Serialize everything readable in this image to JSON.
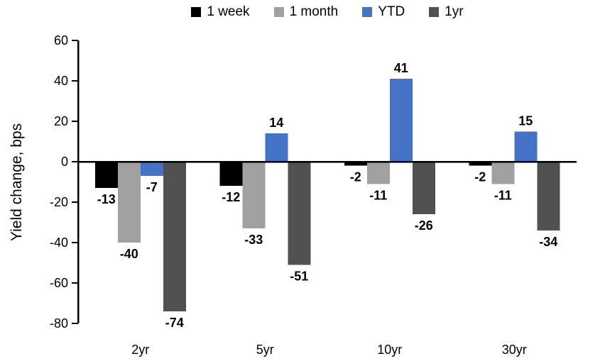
{
  "chart_data": {
    "type": "bar",
    "title": "",
    "ylabel": "Yield change, bps",
    "xlabel": "",
    "ylim": [
      -80,
      60
    ],
    "ytick_step": 20,
    "yticks": [
      60,
      40,
      20,
      0,
      -20,
      -40,
      -60,
      -80
    ],
    "grid": false,
    "legend_position": "top",
    "categories": [
      "2yr",
      "5yr",
      "10yr",
      "30yr"
    ],
    "series": [
      {
        "name": "1 week",
        "color": "#000000",
        "values": [
          -13,
          -12,
          -2,
          -2
        ]
      },
      {
        "name": "1 month",
        "color": "#A0A0A0",
        "values": [
          -40,
          -33,
          -11,
          -11
        ]
      },
      {
        "name": "YTD",
        "color": "#4472C4",
        "values": [
          -7,
          14,
          41,
          15
        ]
      },
      {
        "name": "1yr",
        "color": "#515151",
        "values": [
          -74,
          -51,
          -26,
          -34
        ]
      }
    ],
    "axis_color": "#000000"
  }
}
